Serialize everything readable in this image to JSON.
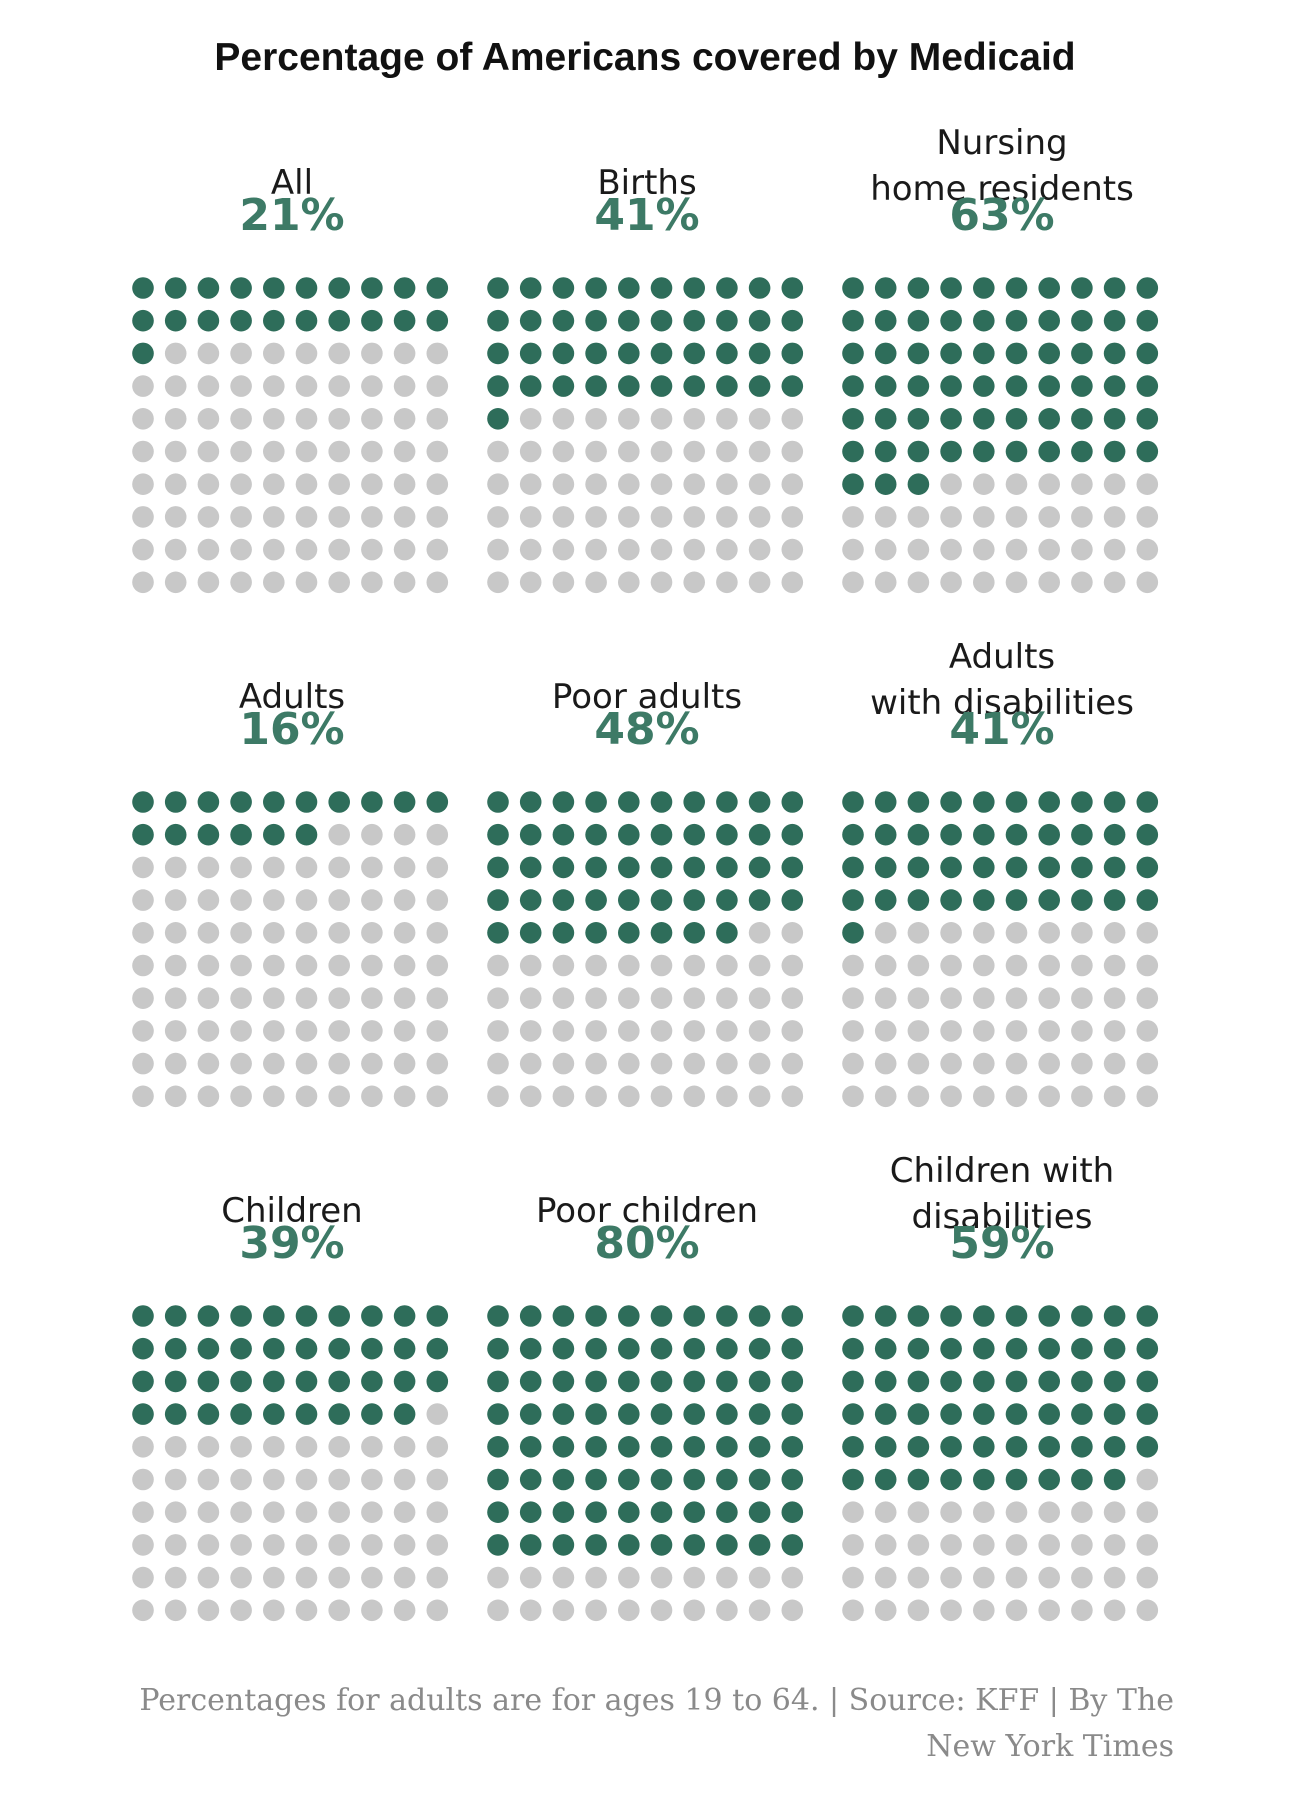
{
  "colors": {
    "filled": "#2e6d5a",
    "empty": "#c8c8c8",
    "accent": "#3d7a66"
  },
  "chart_data": {
    "type": "waffle",
    "title": "Percentage of Americans covered by Medicaid",
    "grid": {
      "rows": 10,
      "cols": 10,
      "total": 100
    },
    "panels": [
      {
        "label": [
          "All"
        ],
        "percent_label": "21%",
        "value": 21
      },
      {
        "label": [
          "Births"
        ],
        "percent_label": "41%",
        "value": 41
      },
      {
        "label": [
          "Nursing",
          "home residents"
        ],
        "percent_label": "63%",
        "value": 63
      },
      {
        "label": [
          "Adults"
        ],
        "percent_label": "16%",
        "value": 16
      },
      {
        "label": [
          "Poor adults"
        ],
        "percent_label": "48%",
        "value": 48
      },
      {
        "label": [
          "Adults",
          "with disabilities"
        ],
        "percent_label": "41%",
        "value": 41
      },
      {
        "label": [
          "Children"
        ],
        "percent_label": "39%",
        "value": 39
      },
      {
        "label": [
          "Poor children"
        ],
        "percent_label": "80%",
        "value": 80
      },
      {
        "label": [
          "Children with",
          "disabilities"
        ],
        "percent_label": "59%",
        "value": 59
      }
    ]
  },
  "footer": {
    "line1": "Percentages for adults are for ages 19 to 64. | Source: KFF | By The",
    "line2": "New York Times"
  }
}
